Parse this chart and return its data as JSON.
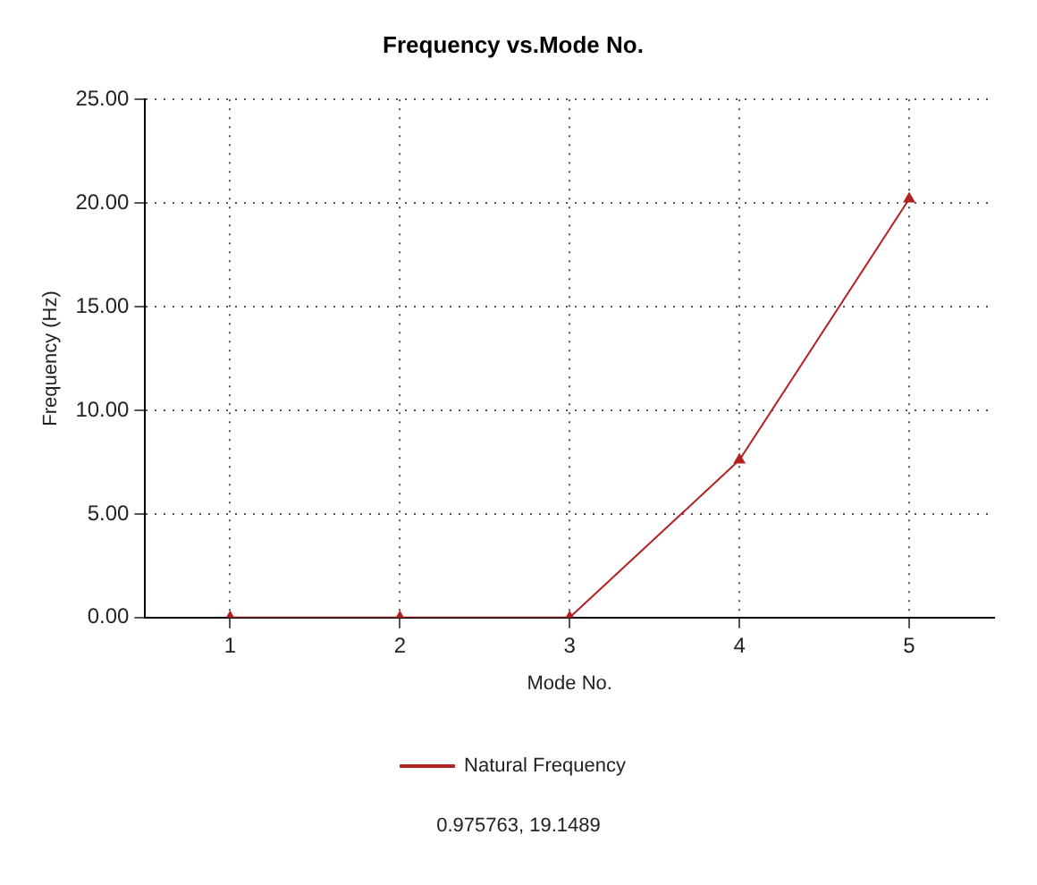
{
  "chart_data": {
    "type": "line",
    "title": "Frequency vs.Mode No.",
    "xlabel": "Mode No.",
    "ylabel": "Frequency (Hz)",
    "categories": [
      "1",
      "2",
      "3",
      "4",
      "5"
    ],
    "series": [
      {
        "name": "Natural Frequency",
        "color": "#b22222",
        "values": [
          0,
          0,
          0,
          7.6,
          20.2
        ]
      }
    ],
    "ylim": [
      0,
      25
    ],
    "yticks": [
      {
        "value": 0,
        "label": "0.00"
      },
      {
        "value": 5,
        "label": "5.00"
      },
      {
        "value": 10,
        "label": "10.00"
      },
      {
        "value": 15,
        "label": "15.00"
      },
      {
        "value": 20,
        "label": "20.00"
      },
      {
        "value": 25,
        "label": "25.00"
      }
    ],
    "grid": true,
    "legend": "bottom",
    "marker": "triangle",
    "line_style": "solid",
    "annotations": [
      "0.975763, 19.1489"
    ]
  }
}
